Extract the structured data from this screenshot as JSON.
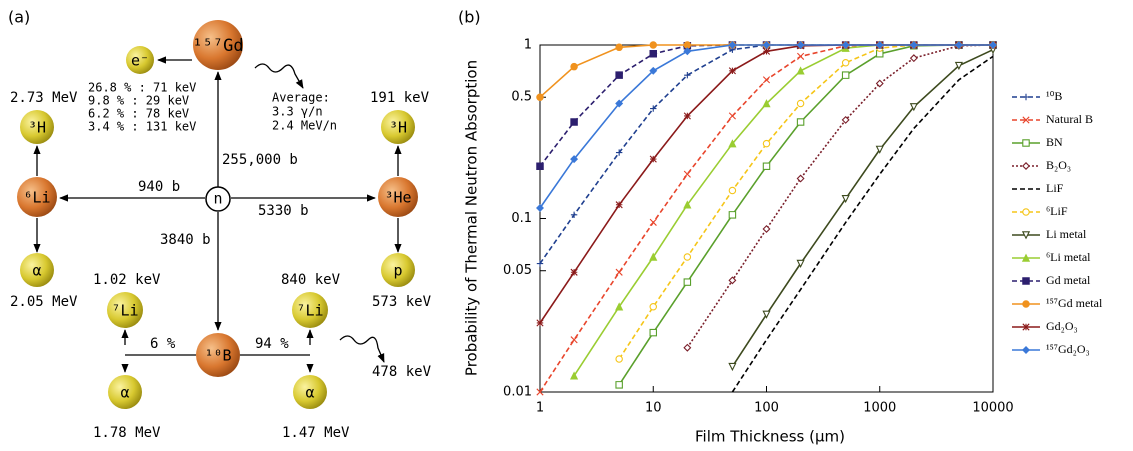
{
  "panel_a": {
    "label": "(a)",
    "nodes": {
      "gd157": "¹⁵⁷Gd",
      "electron": "e⁻",
      "neutron": "n",
      "li6": "⁶Li",
      "he3": "³He",
      "h3_left": "³H",
      "h3_right": "³H",
      "alpha_left": "α",
      "proton": "p",
      "li7_left": "⁷Li",
      "b10": "¹⁰B",
      "li7_right": "⁷Li",
      "alpha_bottom_left": "α",
      "alpha_bottom_right": "α"
    },
    "cross_sections": {
      "gd157": "255,000 b",
      "li6": "940 b",
      "he3": "5330 b",
      "b10": "3840 b"
    },
    "energies": {
      "h3_left": "2.73 MeV",
      "alpha_left": "2.05 MeV",
      "h3_right": "191 keV",
      "proton": "573 keV",
      "li7_left": "1.02 keV",
      "li7_right": "840 keV",
      "alpha_bottom_left": "1.78 MeV",
      "alpha_bottom_right": "1.47 MeV",
      "gamma_b10": "478 keV"
    },
    "branches": [
      "6 %",
      "94 %"
    ],
    "conversion_electrons": [
      "26.8 % : 71 keV",
      "9.8 % : 29 keV",
      "6.2 % : 78 keV",
      "3.4 % : 131 keV"
    ],
    "gamma_average": [
      "Average:",
      "3.3 γ/n",
      "2.4 MeV/n"
    ]
  },
  "chart_data": {
    "type": "line",
    "panel_label": "(b)",
    "x_label": "Film Thickness (μm)",
    "y_label": "Probability of Thermal Neutron Absorption",
    "xscale": "log",
    "yscale": "log",
    "xlim": [
      1,
      10000
    ],
    "ylim": [
      0.01,
      1
    ],
    "xticks": [
      1,
      10,
      100,
      1000,
      10000
    ],
    "yticks": [
      0.01,
      0.05,
      0.1,
      0.5,
      1
    ],
    "legend": "right",
    "x": [
      1,
      2,
      5,
      10,
      20,
      50,
      100,
      200,
      500,
      1000,
      2000,
      5000,
      10000
    ],
    "series": [
      {
        "name": "¹⁰B",
        "color": "#1f3f8f",
        "linestyle": "dashed",
        "marker": "plus",
        "values": [
          0.055,
          0.105,
          0.24,
          0.43,
          0.67,
          0.94,
          1,
          1,
          1,
          1,
          1,
          1,
          1
        ]
      },
      {
        "name": "Natural B",
        "color": "#e8452c",
        "linestyle": "dashed",
        "marker": "x",
        "values": [
          0.01,
          0.02,
          0.049,
          0.095,
          0.18,
          0.39,
          0.63,
          0.86,
          0.99,
          1,
          1,
          1,
          1
        ]
      },
      {
        "name": "BN",
        "color": "#5aa02c",
        "linestyle": "solid",
        "marker": "square",
        "values": [
          null,
          null,
          0.011,
          0.022,
          0.043,
          0.105,
          0.2,
          0.36,
          0.67,
          0.89,
          0.99,
          1,
          1
        ]
      },
      {
        "name": "B₂O₃",
        "color": "#7a1f2a",
        "linestyle": "dotted",
        "marker": "diamond",
        "values": [
          null,
          null,
          null,
          null,
          0.018,
          0.044,
          0.087,
          0.17,
          0.37,
          0.6,
          0.84,
          0.99,
          1
        ]
      },
      {
        "name": "LiF",
        "color": "#000000",
        "linestyle": "dashed",
        "marker": "none",
        "values": [
          null,
          null,
          null,
          null,
          null,
          0.01,
          0.02,
          0.039,
          0.095,
          0.18,
          0.33,
          0.63,
          0.86
        ]
      },
      {
        "name": "⁶LiF",
        "color": "#f5c518",
        "linestyle": "dashed",
        "marker": "circle",
        "values": [
          null,
          null,
          0.0155,
          0.031,
          0.06,
          0.145,
          0.27,
          0.46,
          0.79,
          0.96,
          1,
          1,
          1
        ]
      },
      {
        "name": "Li metal",
        "color": "#3d4a1e",
        "linestyle": "solid",
        "marker": "triangle-down",
        "values": [
          null,
          null,
          null,
          null,
          null,
          0.014,
          0.028,
          0.055,
          0.13,
          0.25,
          0.44,
          0.76,
          0.94
        ]
      },
      {
        "name": "⁶Li metal",
        "color": "#9acd32",
        "linestyle": "solid",
        "marker": "triangle-up",
        "values": [
          null,
          0.0124,
          0.031,
          0.06,
          0.12,
          0.27,
          0.46,
          0.71,
          0.96,
          1,
          1,
          1,
          1
        ]
      },
      {
        "name": "Gd metal",
        "color": "#2c1f6e",
        "linestyle": "dashed",
        "marker": "filled-square",
        "values": [
          0.2,
          0.36,
          0.67,
          0.89,
          0.99,
          1,
          1,
          1,
          1,
          1,
          1,
          1,
          1
        ]
      },
      {
        "name": "¹⁵⁷Gd metal",
        "color": "#f0921e",
        "linestyle": "solid",
        "marker": "filled-circle",
        "values": [
          0.5,
          0.75,
          0.97,
          1,
          1,
          1,
          1,
          1,
          1,
          1,
          1,
          1,
          1
        ]
      },
      {
        "name": "Gd₂O₃",
        "color": "#8b1a1a",
        "linestyle": "solid",
        "marker": "asterisk",
        "values": [
          0.025,
          0.049,
          0.12,
          0.22,
          0.39,
          0.71,
          0.92,
          0.99,
          1,
          1,
          1,
          1,
          1
        ]
      },
      {
        "name": "¹⁵⁷Gd₂O₃",
        "color": "#3a78d8",
        "linestyle": "solid",
        "marker": "filled-diamond",
        "values": [
          0.115,
          0.22,
          0.46,
          0.71,
          0.92,
          1,
          1,
          1,
          1,
          1,
          1,
          1,
          1
        ]
      }
    ]
  }
}
